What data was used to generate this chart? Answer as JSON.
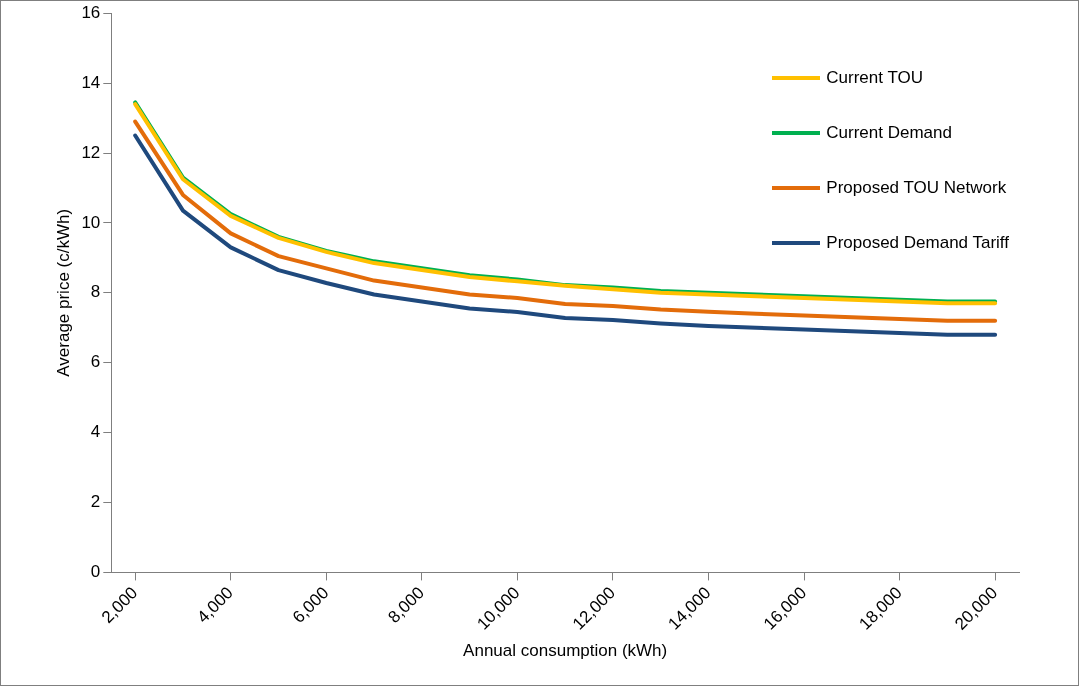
{
  "chart_data": {
    "type": "line",
    "xlabel": "Annual consumption (kWh)",
    "ylabel": "Average price (c/kWh)",
    "x": [
      2000,
      3000,
      4000,
      5000,
      6000,
      7000,
      8000,
      9000,
      10000,
      11000,
      12000,
      13000,
      14000,
      15000,
      16000,
      17000,
      18000,
      19000,
      20000
    ],
    "xlim": [
      1500,
      20500
    ],
    "xticks": [
      {
        "value": 2000,
        "label": "2,000"
      },
      {
        "value": 4000,
        "label": "4,000"
      },
      {
        "value": 6000,
        "label": "6,000"
      },
      {
        "value": 8000,
        "label": "8,000"
      },
      {
        "value": 10000,
        "label": "10,000"
      },
      {
        "value": 12000,
        "label": "12,000"
      },
      {
        "value": 14000,
        "label": "14,000"
      },
      {
        "value": 16000,
        "label": "16,000"
      },
      {
        "value": 18000,
        "label": "18,000"
      },
      {
        "value": 20000,
        "label": "20,000"
      }
    ],
    "ylim": [
      0,
      16
    ],
    "yticks": [
      0,
      2,
      4,
      6,
      8,
      10,
      12,
      14,
      16
    ],
    "grid": false,
    "legend": "top right",
    "marker": "none",
    "line_style": "solid",
    "series": [
      {
        "name": "Current TOU",
        "color": "#ffc000",
        "values": [
          13.4,
          11.25,
          10.2,
          9.57,
          9.17,
          8.85,
          8.65,
          8.45,
          8.33,
          8.2,
          8.1,
          8.0,
          7.95,
          7.9,
          7.85,
          7.8,
          7.75,
          7.7,
          7.7
        ]
      },
      {
        "name": "Current Demand",
        "color": "#00b050",
        "values": [
          13.45,
          11.3,
          10.25,
          9.6,
          9.2,
          8.9,
          8.7,
          8.5,
          8.38,
          8.22,
          8.15,
          8.05,
          8.0,
          7.95,
          7.9,
          7.85,
          7.8,
          7.75,
          7.75
        ]
      },
      {
        "name": "Proposed TOU Network",
        "color": "#e36c0a",
        "values": [
          12.9,
          10.8,
          9.7,
          9.05,
          8.7,
          8.35,
          8.15,
          7.95,
          7.85,
          7.68,
          7.62,
          7.52,
          7.46,
          7.4,
          7.35,
          7.3,
          7.25,
          7.2,
          7.2
        ]
      },
      {
        "name": "Proposed Demand Tariff",
        "color": "#1f497d",
        "values": [
          12.5,
          10.35,
          9.3,
          8.65,
          8.28,
          7.95,
          7.75,
          7.55,
          7.45,
          7.28,
          7.22,
          7.12,
          7.05,
          7.0,
          6.95,
          6.9,
          6.85,
          6.8,
          6.8
        ]
      }
    ]
  }
}
